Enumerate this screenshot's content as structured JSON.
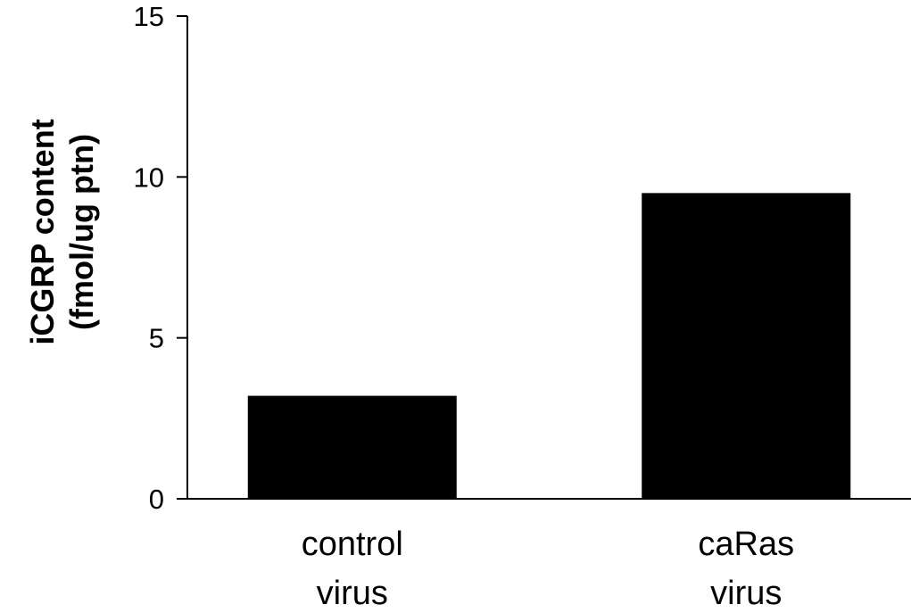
{
  "chart_data": {
    "type": "bar",
    "title": "",
    "xlabel": "",
    "ylabel": [
      "iCGRP content",
      "(fmol/ug ptn)"
    ],
    "ylim": [
      0,
      15
    ],
    "yticks": [
      0,
      5,
      10,
      15
    ],
    "grid": false,
    "categories": [
      [
        "control",
        "virus"
      ],
      [
        "caRas",
        "virus"
      ]
    ],
    "values": [
      3.2,
      9.5
    ],
    "bar_color": "#000000"
  }
}
